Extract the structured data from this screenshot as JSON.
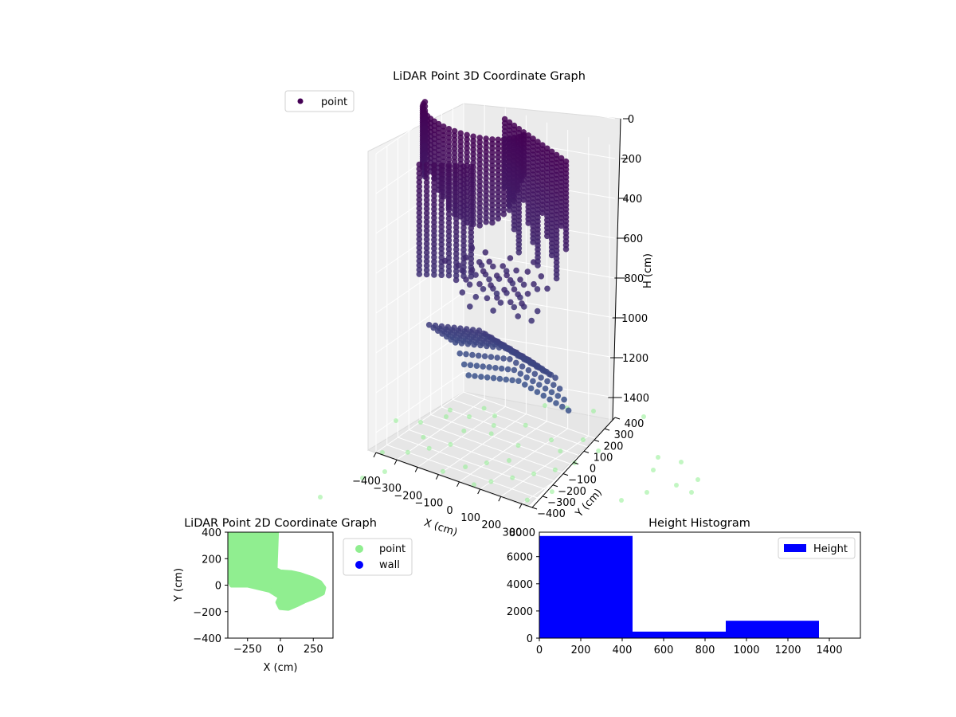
{
  "figure": {
    "title_3d": "LiDAR Point 3D Coordinate Graph",
    "title_2d": "LiDAR Point 2D Coordinate Graph",
    "title_hist": "Height Histogram"
  },
  "colors": {
    "point_3d_top": "#440154",
    "point_3d_bottom": "#3b528b",
    "projection": "#90ee90",
    "wall": "#0000ff",
    "hist_bar": "#0000ff"
  },
  "chart_data": [
    {
      "type": "scatter",
      "projection": "3d",
      "title": "LiDAR Point 3D Coordinate Graph",
      "xlabel": "X (cm)",
      "ylabel": "Y (cm)",
      "zlabel": "H (cm)",
      "xlim": [
        -400,
        350
      ],
      "ylim": [
        -400,
        400
      ],
      "zlim": [
        1500,
        0
      ],
      "x_ticks": [
        "−400",
        "−300",
        "−200",
        "−100",
        "0",
        "100",
        "200",
        "300"
      ],
      "y_ticks": [
        "−400",
        "−300",
        "−200",
        "−100",
        "0",
        "100",
        "200",
        "300",
        "400"
      ],
      "z_ticks": [
        "0",
        "200",
        "400",
        "600",
        "800",
        "1000",
        "1200",
        "1400"
      ],
      "legend": [
        "point"
      ],
      "legend_position": "upper-left",
      "grid": true,
      "series": [
        {
          "name": "point",
          "description_groups": [
            {
              "label_hidden": true,
              "h_range": [
                0,
                600
              ],
              "colormap_end": "dark-purple"
            },
            {
              "label_hidden": true,
              "h_range": [
                700,
                1200
              ],
              "colormap_end": "blue-purple"
            }
          ]
        }
      ]
    },
    {
      "type": "scatter",
      "title": "LiDAR Point 2D Coordinate Graph",
      "xlabel": "X (cm)",
      "ylabel": "Y (cm)",
      "xlim": [
        -400,
        400
      ],
      "ylim": [
        -400,
        400
      ],
      "x_ticks": [
        "−250",
        "0",
        "250"
      ],
      "y_ticks": [
        "400",
        "200",
        "0",
        "−200",
        "−400"
      ],
      "legend": [
        "point",
        "wall"
      ],
      "legend_position": "outside-right",
      "series": [
        {
          "name": "point",
          "outline": [
            [
              -400,
              400
            ],
            [
              -30,
              400
            ],
            [
              -40,
              120
            ],
            [
              0,
              100
            ],
            [
              80,
              95
            ],
            [
              150,
              80
            ],
            [
              240,
              50
            ],
            [
              300,
              20
            ],
            [
              330,
              -20
            ],
            [
              320,
              -60
            ],
            [
              260,
              -90
            ],
            [
              180,
              -120
            ],
            [
              120,
              -150
            ],
            [
              60,
              -175
            ],
            [
              0,
              -170
            ],
            [
              -20,
              -130
            ],
            [
              0,
              -90
            ],
            [
              -80,
              -40
            ],
            [
              -250,
              0
            ],
            [
              -370,
              0
            ],
            [
              -400,
              60
            ]
          ]
        },
        {
          "name": "wall",
          "values": []
        }
      ]
    },
    {
      "type": "bar",
      "subtype": "histogram",
      "title": "Height Histogram",
      "xlim": [
        0,
        1550
      ],
      "ylim": [
        0,
        7800
      ],
      "x_ticks": [
        "0",
        "200",
        "400",
        "600",
        "800",
        "1000",
        "1200",
        "1400"
      ],
      "y_ticks": [
        "0",
        "2000",
        "4000",
        "6000",
        "8000"
      ],
      "legend": [
        "Height"
      ],
      "legend_position": "upper-right",
      "bins": [
        [
          0,
          450
        ],
        [
          450,
          900
        ],
        [
          900,
          1350
        ]
      ],
      "values": [
        7520,
        480,
        1280
      ]
    }
  ]
}
